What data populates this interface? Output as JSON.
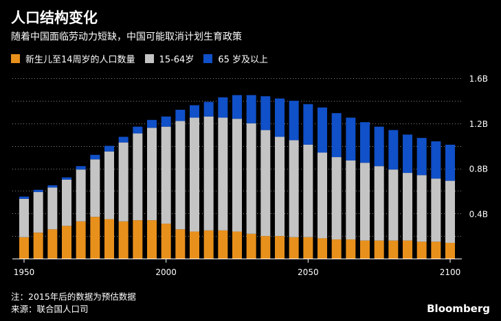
{
  "title": "人口结构变化",
  "subtitle": "随着中国面临劳动力短缺，中国可能取消计划生育政策",
  "legend": [
    {
      "label": "新生儿至14周岁的人口数量",
      "color": "#e8901c"
    },
    {
      "label": "15-64岁",
      "color": "#c4c4c4"
    },
    {
      "label": "65 岁及以上",
      "color": "#1050c8"
    }
  ],
  "footnotes": {
    "note": "注：2015年后的数据为预估数据",
    "source": "来源：联合国人口司"
  },
  "brand": "Bloomberg",
  "chart_data": {
    "type": "bar",
    "stacked": true,
    "title": "人口结构变化",
    "xlabel": "",
    "ylabel": "",
    "xlim": [
      1950,
      2100
    ],
    "ylim": [
      0,
      1.6
    ],
    "y_ticks": [
      0.4,
      0.8,
      1.2,
      1.6
    ],
    "y_tick_labels": [
      "0.4B",
      "0.8B",
      "1.2B",
      "1.6B"
    ],
    "x_ticks": [
      1950,
      2000,
      2050,
      2100
    ],
    "x_tick_labels": [
      "1950",
      "2000",
      "2050",
      "2100"
    ],
    "categories": [
      1950,
      1955,
      1960,
      1965,
      1970,
      1975,
      1980,
      1985,
      1990,
      1995,
      2000,
      2005,
      2010,
      2015,
      2020,
      2025,
      2030,
      2035,
      2040,
      2045,
      2050,
      2055,
      2060,
      2065,
      2070,
      2075,
      2080,
      2085,
      2090,
      2095,
      2100
    ],
    "series": [
      {
        "name": "新生儿至14周岁的人口数量",
        "color": "#e8901c",
        "values": [
          0.19,
          0.23,
          0.26,
          0.29,
          0.33,
          0.37,
          0.35,
          0.33,
          0.34,
          0.34,
          0.31,
          0.26,
          0.24,
          0.25,
          0.25,
          0.24,
          0.22,
          0.2,
          0.2,
          0.19,
          0.19,
          0.18,
          0.17,
          0.17,
          0.16,
          0.16,
          0.16,
          0.16,
          0.15,
          0.15,
          0.14
        ]
      },
      {
        "name": "15-64岁",
        "color": "#c4c4c4",
        "values": [
          0.34,
          0.36,
          0.37,
          0.41,
          0.46,
          0.51,
          0.6,
          0.7,
          0.77,
          0.82,
          0.86,
          0.96,
          1.01,
          1.01,
          1.0,
          1.0,
          0.98,
          0.94,
          0.88,
          0.86,
          0.82,
          0.76,
          0.73,
          0.7,
          0.69,
          0.66,
          0.63,
          0.6,
          0.59,
          0.56,
          0.55
        ]
      },
      {
        "name": "65 岁及以上",
        "color": "#1050c8",
        "values": [
          0.02,
          0.02,
          0.02,
          0.02,
          0.03,
          0.04,
          0.05,
          0.05,
          0.06,
          0.07,
          0.09,
          0.1,
          0.11,
          0.13,
          0.18,
          0.21,
          0.25,
          0.3,
          0.34,
          0.35,
          0.36,
          0.4,
          0.39,
          0.38,
          0.36,
          0.35,
          0.35,
          0.34,
          0.33,
          0.33,
          0.32
        ]
      }
    ]
  }
}
